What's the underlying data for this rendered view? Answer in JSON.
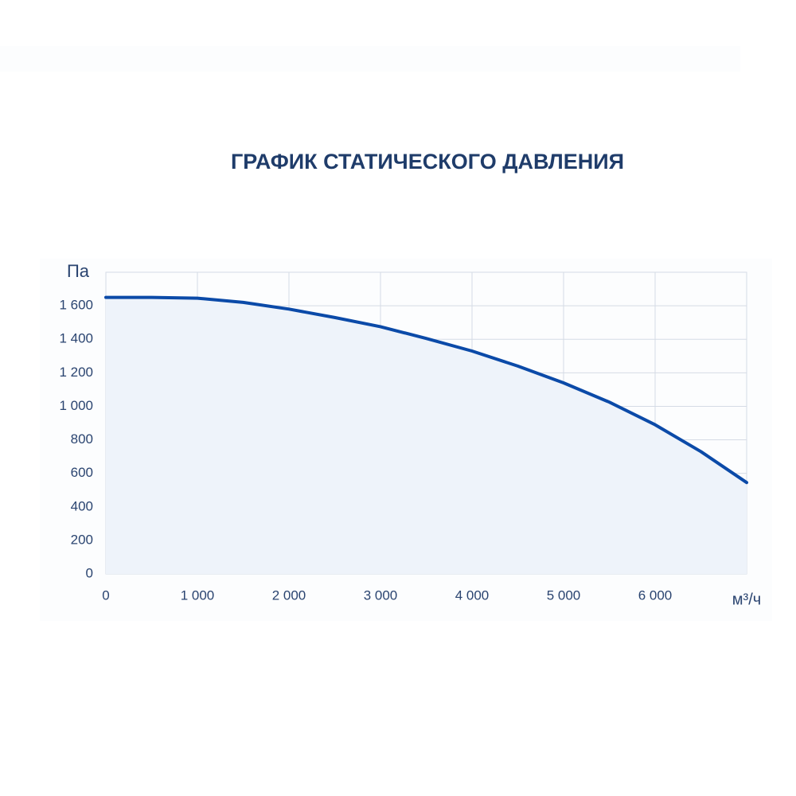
{
  "chart_data": {
    "type": "line",
    "title": "ГРАФИК СТАТИЧЕСКОГО ДАВЛЕНИЯ",
    "y_label": "Па",
    "x_label": "м³/ч",
    "x": [
      0,
      500,
      1000,
      1500,
      2000,
      2500,
      3000,
      3500,
      4000,
      4500,
      5000,
      5500,
      6000,
      6500,
      7000
    ],
    "series": [
      {
        "color": "#0b4aa8",
        "area_color": "#eef3fa",
        "values": [
          1650,
          1650,
          1645,
          1620,
          1580,
          1530,
          1475,
          1405,
          1330,
          1240,
          1140,
          1025,
          890,
          730,
          545
        ]
      }
    ],
    "xlim": [
      0,
      7000
    ],
    "xticks": [
      0,
      {
        "value": 1000,
        "label": "1 000"
      },
      {
        "value": 2000,
        "label": "2 000"
      },
      {
        "value": 3000,
        "label": "3 000"
      },
      {
        "value": 4000,
        "label": "4 000"
      },
      {
        "value": 5000,
        "label": "5 000"
      },
      {
        "value": 6000,
        "label": "6 000"
      }
    ],
    "ylim": [
      0,
      1800
    ],
    "yticks": [
      0,
      200,
      400,
      600,
      800,
      {
        "value": 1000,
        "label": "1 000"
      },
      {
        "value": 1200,
        "label": "1 200"
      },
      {
        "value": 1400,
        "label": "1 400"
      },
      {
        "value": 1600,
        "label": "1 600"
      }
    ],
    "grid": true
  }
}
